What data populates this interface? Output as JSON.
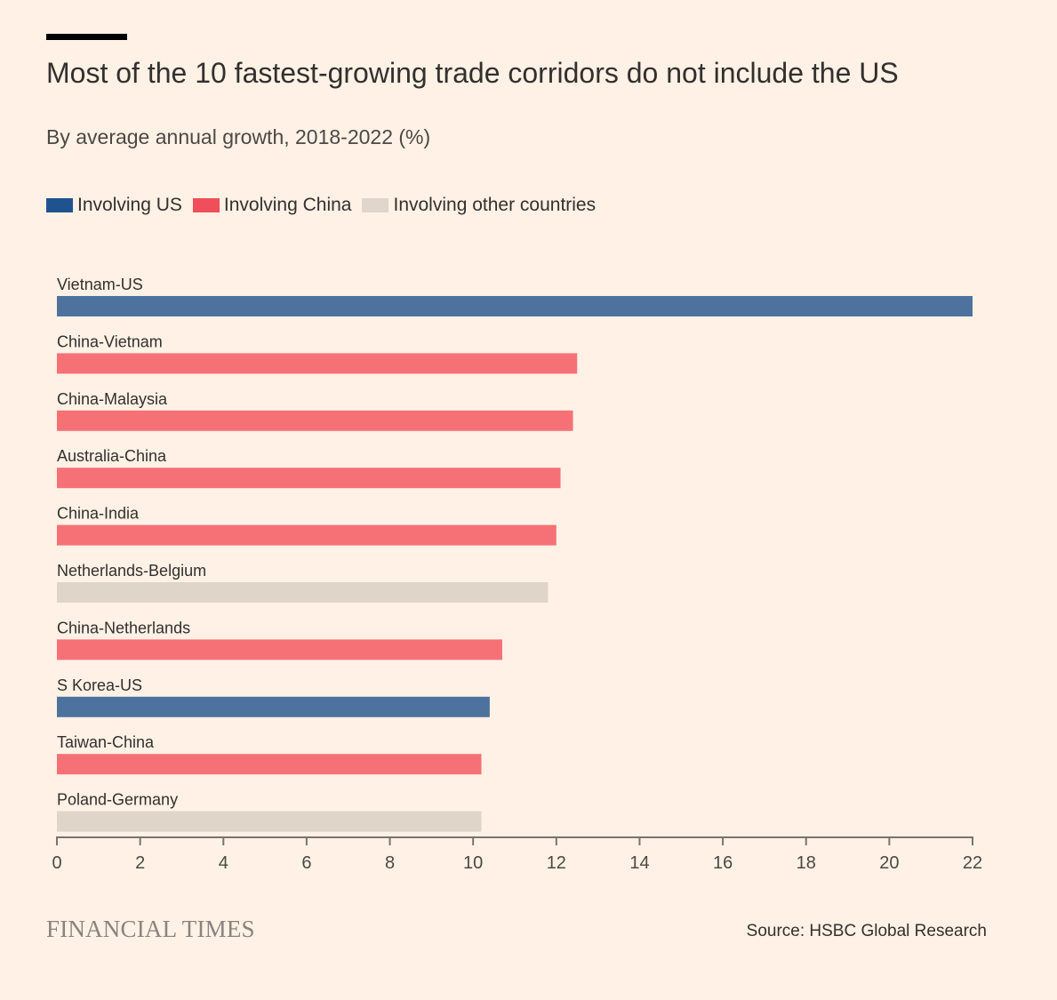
{
  "header": {
    "title": "Most of the 10 fastest-growing trade corridors do not include the US",
    "subtitle": "By average annual growth, 2018-2022 (%)"
  },
  "legend": [
    {
      "label": "Involving US",
      "color": "#1f5390"
    },
    {
      "label": "Involving China",
      "color": "#f04e5b"
    },
    {
      "label": "Involving other countries",
      "color": "#e0d6cb"
    }
  ],
  "chart_data": {
    "type": "bar",
    "orientation": "horizontal",
    "title": "Most of the 10 fastest-growing trade corridors do not include the US",
    "subtitle": "By average annual growth, 2018-2022 (%)",
    "xlim": [
      0,
      22
    ],
    "ticks": [
      0,
      2,
      4,
      6,
      8,
      10,
      12,
      14,
      16,
      18,
      20,
      22
    ],
    "grid": false,
    "legend_position": "top-left",
    "group_colors": {
      "US": "#4d729e",
      "China": "#f67176",
      "Other": "#e0d5c9"
    },
    "bars": [
      {
        "label": "Vietnam-US",
        "value": 22.0,
        "group": "US"
      },
      {
        "label": "China-Vietnam",
        "value": 12.5,
        "group": "China"
      },
      {
        "label": "China-Malaysia",
        "value": 12.4,
        "group": "China"
      },
      {
        "label": "Australia-China",
        "value": 12.1,
        "group": "China"
      },
      {
        "label": "China-India",
        "value": 12.0,
        "group": "China"
      },
      {
        "label": "Netherlands-Belgium",
        "value": 11.8,
        "group": "Other"
      },
      {
        "label": "China-Netherlands",
        "value": 10.7,
        "group": "China"
      },
      {
        "label": "S Korea-US",
        "value": 10.4,
        "group": "US"
      },
      {
        "label": "Taiwan-China",
        "value": 10.2,
        "group": "China"
      },
      {
        "label": "Poland-Germany",
        "value": 10.2,
        "group": "Other"
      }
    ]
  },
  "footer": {
    "brand": "FINANCIAL TIMES",
    "source": "Source: HSBC Global Research"
  }
}
